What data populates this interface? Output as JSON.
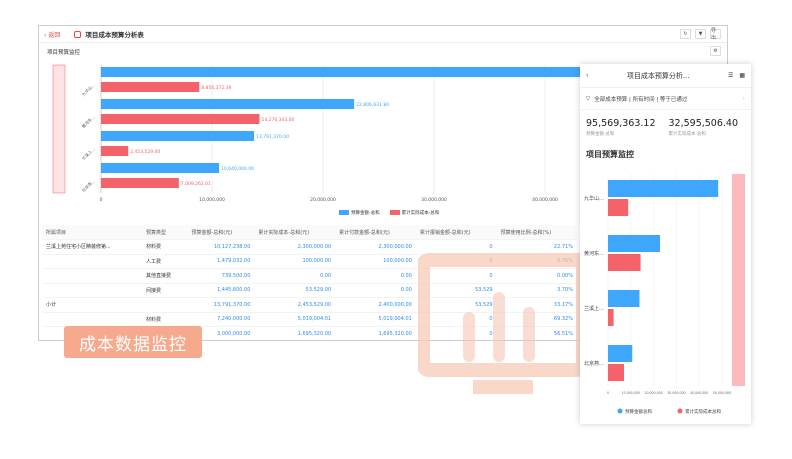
{
  "header": {
    "back_label": "返回",
    "title": "项目成本预算分析表",
    "refresh_icon": "refresh-icon",
    "filter_icon": "filter-icon",
    "export_label": "导出"
  },
  "section_title": "项目预算监控",
  "chart_data": {
    "type": "bar",
    "orientation": "horizontal",
    "categories": [
      "九华山…",
      "黄河东…",
      "兰溪上…",
      "北京燕…"
    ],
    "series": [
      {
        "name": "预算金额-总和",
        "color": "#3fa7fb",
        "values": [
          48331361.32,
          22806631.8,
          13791370.0,
          10640000.0
        ],
        "labels": [
          "",
          "22,806,631.80",
          "13,791,370.00",
          "10,640,000.00"
        ]
      },
      {
        "name": "累计实际成本-总和",
        "color": "#f4626a",
        "values": [
          8856372.39,
          14276343.0,
          2453529.0,
          7009262.01
        ],
        "labels": [
          "8,856,372.39",
          "14,276,343.00",
          "2,453,529.00",
          "7,009,262.01"
        ]
      }
    ],
    "xticks": [
      "0",
      "10,000,000",
      "20,000,000",
      "30,000,000",
      "40,000,000"
    ],
    "xlim": [
      0,
      52000000
    ],
    "grid": true,
    "legend": "bottom"
  },
  "table": {
    "headers": [
      "所属项目",
      "预算类型",
      "预算金额-总和(元)",
      "累计实际成本-总和(元)",
      "累计付款金额-总和(元)",
      "累计报销金额-总和(元)",
      "预算使用比例-总和(%)"
    ],
    "rows": [
      [
        "兰溪上苑住宅小区精装修第...",
        "材料费",
        "10,127,238.00",
        "2,300,000.00",
        "2,300,000.00",
        "0",
        "22.71%"
      ],
      [
        "",
        "人工费",
        "1,479,032.00",
        "100,000.00",
        "100,000.00",
        "0",
        "6.76%"
      ],
      [
        "",
        "其他直接费",
        "739,500.00",
        "0.00",
        "0.00",
        "0",
        "0.00%"
      ],
      [
        "",
        "间接费",
        "1,445,600.00",
        "53,529.00",
        "0.00",
        "53,529",
        "3.70%"
      ],
      [
        "小计",
        "",
        "13,791,370.00",
        "2,453,529.00",
        "2,400,000.00",
        "53,529",
        "33.17%"
      ],
      [
        "",
        "材料费",
        "7,240,000.00",
        "5,019,004.01",
        "5,019,004.01",
        "0",
        "69.32%"
      ],
      [
        "",
        "",
        "3,000,000.00",
        "1,695,320.00",
        "1,695,320.00",
        "0",
        "56.51%"
      ]
    ]
  },
  "badge": "成本数据监控",
  "mobile": {
    "title": "项目成本预算分析...",
    "filter": "全部成本预算 | 所有时间 | 等于已通过",
    "kpis": [
      {
        "value": "95,569,363.12",
        "label": "预算金额·总和"
      },
      {
        "value": "32,595,506.40",
        "label": "累计实际成本·总和"
      }
    ],
    "section": "项目预算监控",
    "xticks": [
      "0",
      "10,000,000",
      "20,000,000",
      "30,000,000",
      "40,000,000",
      "50,000,000"
    ],
    "legend": [
      "预算金额总和",
      "累计实际成本总和"
    ]
  }
}
